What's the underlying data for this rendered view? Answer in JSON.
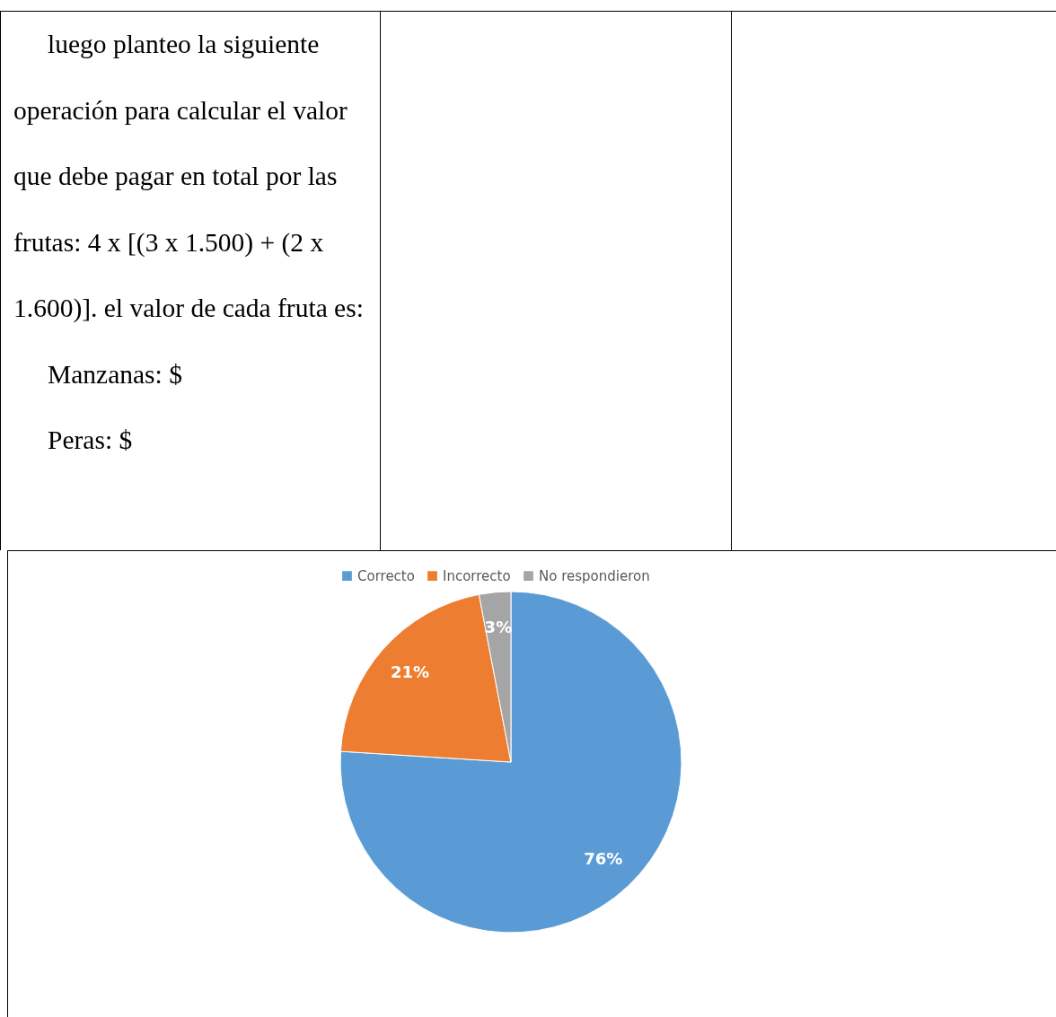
{
  "chart_data": {
    "type": "pie",
    "categories": [
      "Correcto",
      "Incorrecto",
      "No respondieron"
    ],
    "values": [
      76,
      21,
      3
    ],
    "colors": [
      "#5b9bd5",
      "#ed7d31",
      "#a5a5a5"
    ],
    "value_labels": [
      "76%",
      "21%",
      "3%"
    ],
    "legend": "top",
    "annotations": [
      "luego planteo la siguiente operación para calcular el valor que debe pagar en total por las frutas: 4 x [(3 x 1.500) + (2 x 1.600)]. el valor de cada fruta es:",
      "Manzanas:  $",
      "Peras:  $"
    ]
  }
}
